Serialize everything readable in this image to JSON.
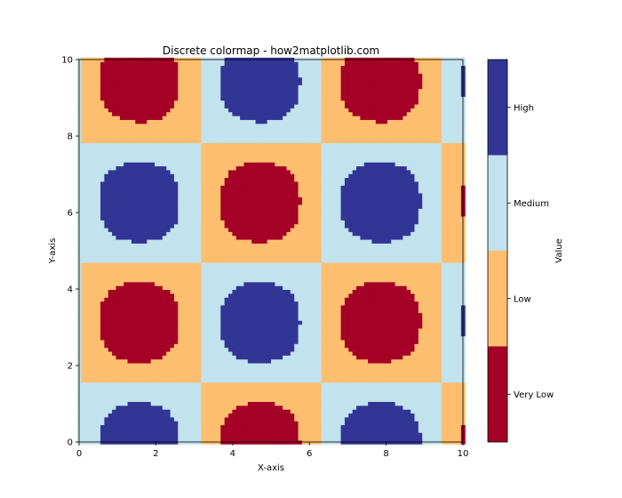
{
  "chart_data": {
    "type": "heatmap",
    "title": "Discrete colormap - how2matplotlib.com",
    "xlabel": "X-axis",
    "ylabel": "Y-axis",
    "xlim": [
      0,
      10
    ],
    "ylim": [
      0,
      10
    ],
    "x_ticks": [
      "0",
      "2",
      "4",
      "6",
      "8",
      "10"
    ],
    "y_ticks": [
      "0",
      "2",
      "4",
      "6",
      "8",
      "10"
    ],
    "function": "sin(x) * cos(y)",
    "grid_resolution": 100,
    "colorbar": {
      "label": "Value",
      "boundaries": [
        -1,
        -0.5,
        0,
        0.5,
        1
      ],
      "levels": [
        "Very Low",
        "Low",
        "Medium",
        "High"
      ],
      "colors": [
        "#a50026",
        "#fdbf6f",
        "#c2e2ee",
        "#313695"
      ]
    }
  }
}
